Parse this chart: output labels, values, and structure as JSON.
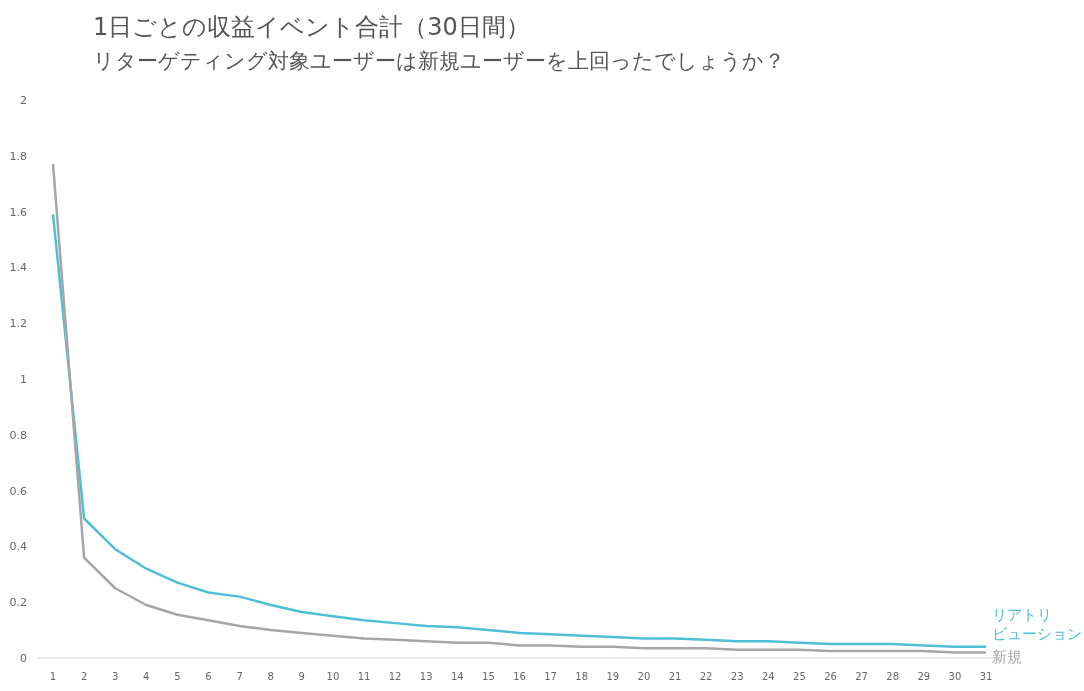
{
  "chart_data": {
    "type": "line",
    "title": "1日ごとの収益イベント合計（30日間）",
    "subtitle": "リターゲティング対象ユーザーは新規ユーザーを上回ったでしょうか？",
    "categories": [
      "1",
      "2",
      "3",
      "4",
      "5",
      "6",
      "7",
      "8",
      "9",
      "10",
      "11",
      "12",
      "13",
      "14",
      "15",
      "16",
      "17",
      "18",
      "19",
      "20",
      "21",
      "22",
      "23",
      "24",
      "25",
      "26",
      "27",
      "28",
      "29",
      "30",
      "31"
    ],
    "series": [
      {
        "name": "リアトリビューション",
        "color": "#4fbfd6",
        "values": [
          1.59,
          0.5,
          0.39,
          0.32,
          0.27,
          0.235,
          0.22,
          0.19,
          0.165,
          0.15,
          0.135,
          0.125,
          0.115,
          0.11,
          0.1,
          0.09,
          0.085,
          0.08,
          0.075,
          0.07,
          0.07,
          0.065,
          0.06,
          0.06,
          0.055,
          0.05,
          0.05,
          0.05,
          0.045,
          0.04,
          0.04
        ]
      },
      {
        "name": "新規",
        "color": "#a6a6a6",
        "values": [
          1.77,
          0.36,
          0.25,
          0.19,
          0.155,
          0.135,
          0.115,
          0.1,
          0.09,
          0.08,
          0.07,
          0.065,
          0.06,
          0.055,
          0.055,
          0.045,
          0.045,
          0.04,
          0.04,
          0.035,
          0.035,
          0.035,
          0.03,
          0.03,
          0.03,
          0.025,
          0.025,
          0.025,
          0.025,
          0.02,
          0.02
        ]
      }
    ],
    "ylim": [
      0,
      2
    ],
    "yticks": [
      0,
      0.2,
      0.4,
      0.6,
      0.8,
      1,
      1.2,
      1.4,
      1.6,
      1.8,
      2
    ],
    "grid": false,
    "marker": "none",
    "line_style": "solid"
  }
}
